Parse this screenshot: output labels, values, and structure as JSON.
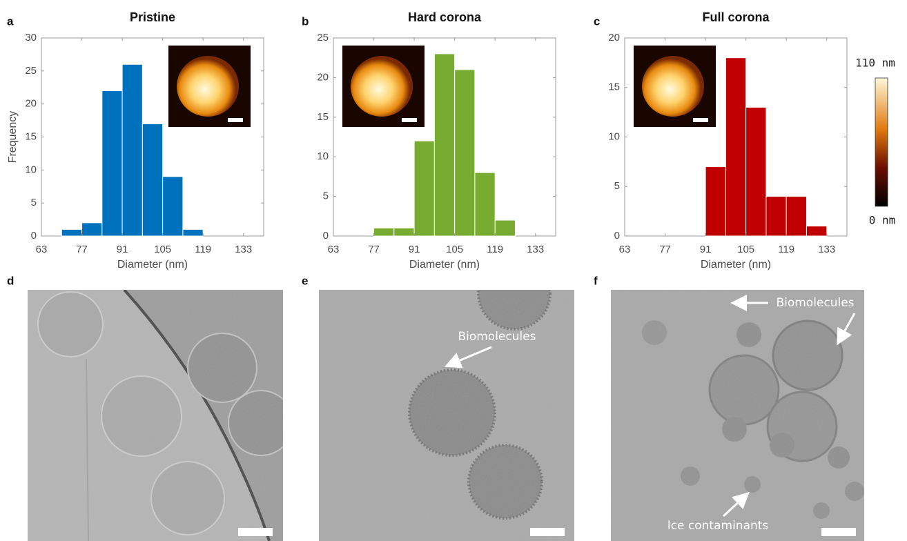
{
  "chart_data": [
    {
      "type": "histogram",
      "title": "Pristine",
      "xlabel": "Diameter (nm)",
      "ylabel": "Frequency",
      "bins": [
        70,
        77,
        84,
        91,
        98,
        105,
        112,
        119
      ],
      "values": [
        1,
        2,
        22,
        26,
        17,
        9,
        1
      ],
      "color": "#0072bd",
      "xlim": [
        63,
        140
      ],
      "ylim": [
        0,
        30
      ],
      "xticks": [
        63,
        77,
        91,
        105,
        119,
        133
      ],
      "yticks": [
        0,
        5,
        10,
        15,
        20,
        25,
        30
      ]
    },
    {
      "type": "histogram",
      "title": "Hard corona",
      "xlabel": "Diameter (nm)",
      "bins": [
        77,
        84,
        91,
        98,
        105,
        112,
        119,
        126
      ],
      "values": [
        1,
        1,
        12,
        23,
        21,
        8,
        2
      ],
      "color": "#77ac30",
      "xlim": [
        63,
        140
      ],
      "ylim": [
        0,
        25
      ],
      "xticks": [
        63,
        77,
        91,
        105,
        119,
        133
      ],
      "yticks": [
        0,
        5,
        10,
        15,
        20,
        25
      ]
    },
    {
      "type": "histogram",
      "title": "Full corona",
      "xlabel": "Diameter (nm)",
      "bins": [
        91,
        98,
        105,
        112,
        119,
        126,
        133
      ],
      "values": [
        7,
        18,
        13,
        4,
        4,
        1
      ],
      "color": "#c00000",
      "xlim": [
        63,
        140
      ],
      "ylim": [
        0,
        20
      ],
      "xticks": [
        63,
        77,
        91,
        105,
        119,
        133
      ],
      "yticks": [
        0,
        5,
        10,
        15,
        20
      ]
    }
  ],
  "panel_labels": [
    "a",
    "b",
    "c",
    "d",
    "e",
    "f"
  ],
  "colorbar": {
    "max_label": "110 nm",
    "min_label": "0 nm"
  },
  "annotations": [
    "Biomolecules",
    "Biomolecules",
    "Ice contaminants"
  ]
}
